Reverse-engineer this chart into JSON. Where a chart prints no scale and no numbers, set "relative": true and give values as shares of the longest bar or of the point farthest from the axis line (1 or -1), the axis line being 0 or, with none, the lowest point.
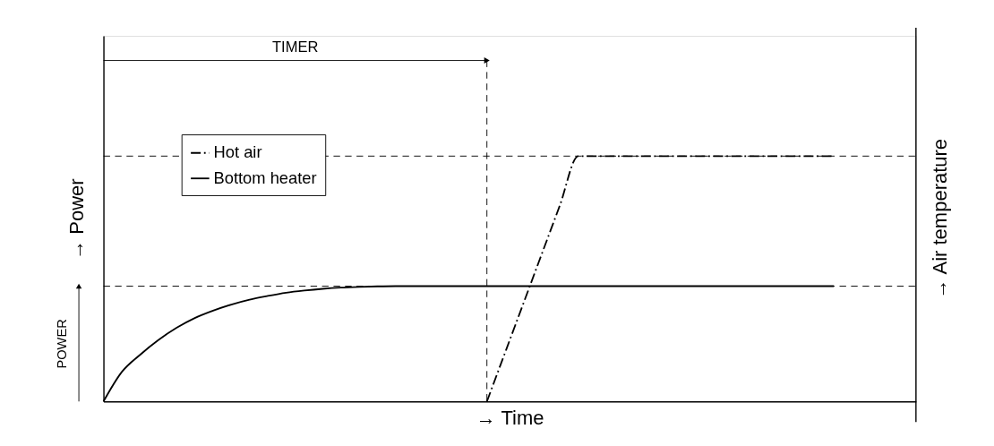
{
  "chart_data": {
    "type": "line",
    "relative": true,
    "xlabel": "→ Time",
    "ylabel": "→ Power",
    "y2label": "→ Air temperature",
    "categories": [
      null,
      null,
      null,
      null,
      null,
      null,
      null,
      null,
      null,
      null,
      null,
      null,
      null,
      null,
      null,
      null,
      null,
      null,
      null,
      null,
      null,
      null,
      null,
      null,
      null,
      null,
      null,
      null,
      null,
      null,
      null,
      null,
      null,
      null,
      null,
      null,
      null,
      null,
      null,
      null,
      null
    ],
    "series": [
      {
        "name": "Hot air",
        "color": "#000000",
        "line_style": "dashed",
        "values": [
          null,
          null,
          null,
          null,
          null,
          null,
          null,
          null,
          null,
          null,
          null,
          null,
          null,
          null,
          null,
          null,
          null,
          null,
          null,
          null,
          null,
          0,
          0.2,
          0.4,
          0.6,
          0.8,
          1,
          1,
          1,
          1,
          1,
          1,
          1,
          1,
          1,
          1,
          1,
          1,
          1,
          1,
          1
        ]
      },
      {
        "name": "Bottom heater",
        "color": "#000000",
        "line_style": "solid",
        "values": [
          0,
          0.12,
          0.19,
          0.25,
          0.3,
          0.34,
          0.37,
          0.395,
          0.415,
          0.43,
          0.443,
          0.452,
          0.459,
          0.464,
          0.467,
          0.469,
          0.47,
          0.47,
          0.47,
          0.47,
          0.47,
          0.47,
          0.47,
          0.47,
          0.47,
          0.47,
          0.47,
          0.47,
          0.47,
          0.47,
          0.47,
          0.47,
          0.47,
          0.47,
          0.47,
          0.47,
          0.47,
          0.47,
          0.47,
          0.47,
          0.47
        ]
      }
    ],
    "ref_lines": [
      {
        "axis": "y",
        "value": 0.47,
        "line_style": "dashed",
        "color": "#000000"
      },
      {
        "axis": "y",
        "value": 1,
        "line_style": "dashed",
        "color": "#000000"
      }
    ],
    "annotations": [
      "TIMER",
      "POWER"
    ],
    "legend": "top left",
    "grid": false
  }
}
